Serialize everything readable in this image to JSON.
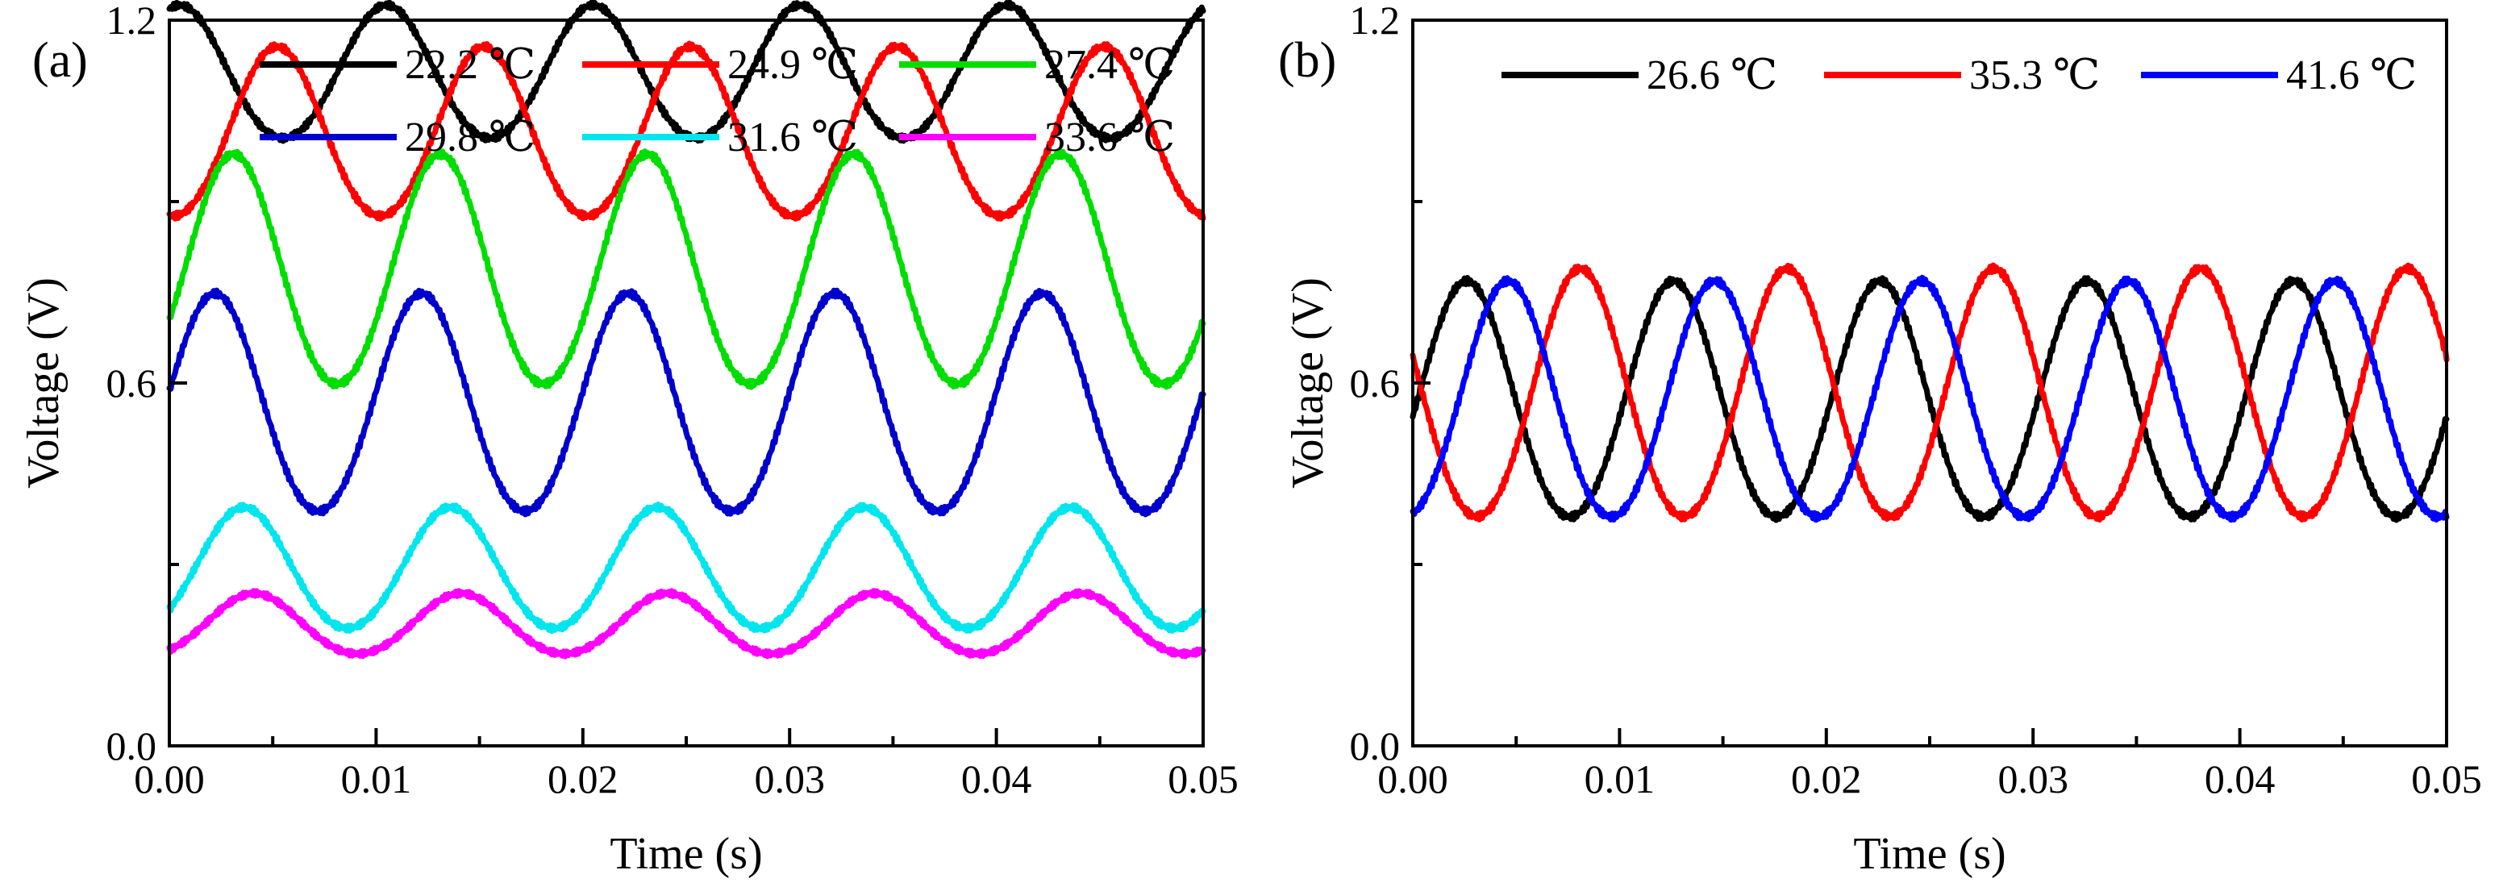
{
  "chart_data": [
    {
      "panel_label": "(a)",
      "type": "line",
      "xlabel": "Time (s)",
      "ylabel": "Voltage (V)",
      "xlim": [
        0,
        0.05
      ],
      "ylim": [
        0,
        1.2
      ],
      "xticks": [
        "0.00",
        "0.01",
        "0.02",
        "0.03",
        "0.04",
        "0.05"
      ],
      "yticks": [
        "0.0",
        "0.6",
        "1.2"
      ],
      "legend_position": "top, two rows",
      "series": [
        {
          "name": "22.2 ℃",
          "color": "#000000",
          "period": 0.01,
          "max": 1.22,
          "min": 1.0,
          "peak_time": 0.0005
        },
        {
          "name": "24.9 ℃",
          "color": "#ff0000",
          "period": 0.01,
          "max": 1.15,
          "min": 0.87,
          "peak_time": 0.0052
        },
        {
          "name": "27.4 ℃",
          "color": "#00dd00",
          "period": 0.01,
          "max": 0.97,
          "min": 0.59,
          "peak_time": 0.0031
        },
        {
          "name": "29.8 ℃",
          "color": "#0000cc",
          "period": 0.01,
          "max": 0.74,
          "min": 0.38,
          "peak_time": 0.0022
        },
        {
          "name": "31.6 ℃",
          "color": "#00e5ee",
          "period": 0.01,
          "max": 0.39,
          "min": 0.19,
          "peak_time": 0.0036
        },
        {
          "name": "33.6 ℃",
          "color": "#ff00ff",
          "period": 0.01,
          "max": 0.25,
          "min": 0.15,
          "peak_time": 0.0041
        }
      ]
    },
    {
      "panel_label": "(b)",
      "type": "line",
      "xlabel": "Time (s)",
      "ylabel": "Voltage (V)",
      "xlim": [
        0,
        0.05
      ],
      "ylim": [
        0,
        1.2
      ],
      "xticks": [
        "0.00",
        "0.01",
        "0.02",
        "0.03",
        "0.04",
        "0.05"
      ],
      "yticks": [
        "0.0",
        "0.6",
        "1.2"
      ],
      "legend_position": "top, one row",
      "series": [
        {
          "name": "26.6 ℃",
          "color": "#000000",
          "period": 0.01,
          "max": 0.76,
          "min": 0.37,
          "peak_time": 0.0026
        },
        {
          "name": "35.3 ℃",
          "color": "#ff0000",
          "period": 0.01,
          "max": 0.78,
          "min": 0.37,
          "peak_time": 0.0081
        },
        {
          "name": "41.6 ℃",
          "color": "#0000ff",
          "period": 0.01,
          "max": 0.76,
          "min": 0.37,
          "peak_time": 0.0046
        }
      ]
    }
  ]
}
